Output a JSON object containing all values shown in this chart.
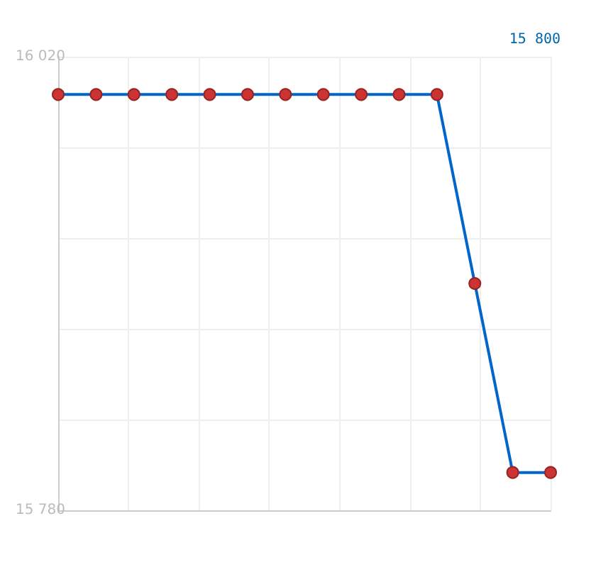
{
  "chart_data": {
    "type": "line",
    "categories": [
      null,
      null,
      null,
      null,
      null,
      null,
      null,
      null,
      null,
      null,
      null,
      null,
      null,
      null
    ],
    "series": [
      {
        "color": "#0066cc",
        "values": [
          16000,
          16000,
          16000,
          16000,
          16000,
          16000,
          16000,
          16000,
          16000,
          16000,
          16000,
          15900,
          15800,
          15800
        ]
      }
    ],
    "ylim": [
      15780,
      16020
    ],
    "yticks": [
      {
        "value": 15780,
        "label": "15 780"
      },
      {
        "value": 15828,
        "label": null
      },
      {
        "value": 15876,
        "label": null
      },
      {
        "value": 15924,
        "label": null
      },
      {
        "value": 15972,
        "label": null
      },
      {
        "value": 16020,
        "label": "16 020"
      }
    ],
    "annotations": [
      "15 800"
    ],
    "grid": true,
    "marker": "circle",
    "line_style": "solid",
    "tick_labels": "y"
  }
}
